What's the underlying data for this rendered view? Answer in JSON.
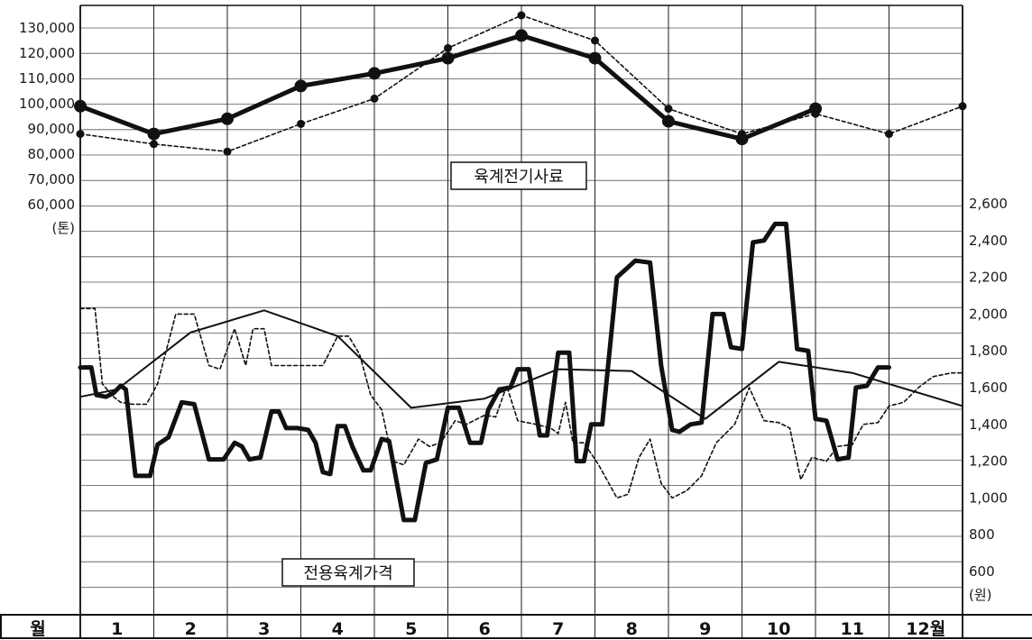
{
  "chart_data": [
    {
      "type": "line",
      "title": "육계전기사료",
      "ylabel": "(톤)",
      "ylim": [
        60000,
        130000
      ],
      "yticks": [
        "130,000",
        "120,000",
        "110,000",
        "100,000",
        "90,000",
        "80,000",
        "70,000",
        "60,000"
      ],
      "x_label": "월",
      "categories": [
        "1",
        "2",
        "3",
        "4",
        "5",
        "6",
        "7",
        "8",
        "9",
        "10",
        "11",
        "12월"
      ],
      "series": [
        {
          "style": "thick-solid",
          "x": [
            0,
            1,
            2,
            3,
            4,
            5,
            6,
            7,
            8,
            9,
            10
          ],
          "values": [
            99000,
            88000,
            94000,
            107000,
            112000,
            118000,
            127000,
            118000,
            93000,
            86000,
            98000
          ]
        },
        {
          "style": "dashed",
          "x": [
            0,
            1,
            2,
            3,
            4,
            5,
            6,
            7,
            8,
            9,
            10,
            11,
            12
          ],
          "values": [
            88000,
            84000,
            81000,
            92000,
            102000,
            122000,
            135000,
            125000,
            98000,
            88000,
            96000,
            88000,
            99000
          ]
        }
      ]
    },
    {
      "type": "line",
      "title": "전용육계가격",
      "ylabel": "(원)",
      "ylim": [
        600,
        2600
      ],
      "yticks": [
        "2,600",
        "2,400",
        "2,200",
        "2,000",
        "1,800",
        "1,600",
        "1,400",
        "1,200",
        "1,000",
        "800",
        "600"
      ],
      "x_label": "월",
      "categories": [
        "1",
        "2",
        "3",
        "4",
        "5",
        "6",
        "7",
        "8",
        "9",
        "10",
        "11",
        "12월"
      ],
      "series": [
        {
          "style": "thin-solid",
          "x": [
            0,
            0.5,
            1.5,
            2.5,
            3.5,
            4.5,
            5.5,
            6.5,
            7.5,
            8.5,
            9.5,
            10.5,
            11.5,
            12
          ],
          "values": [
            1550,
            1590,
            1900,
            2020,
            1880,
            1490,
            1540,
            1700,
            1690,
            1430,
            1740,
            1680,
            1560,
            1500
          ]
        },
        {
          "style": "dashed",
          "x": [
            0,
            0.2,
            0.3,
            0.45,
            0.55,
            0.7,
            0.9,
            1.05,
            1.3,
            1.55,
            1.75,
            1.9,
            2.1,
            2.25,
            2.35,
            2.5,
            2.6,
            2.75,
            2.85,
            3.0,
            3.15,
            3.3,
            3.5,
            3.65,
            3.8,
            3.95,
            4.1,
            4.25,
            4.4,
            4.6,
            4.75,
            4.9,
            5.1,
            5.25,
            5.5,
            5.65,
            5.8,
            5.95,
            6.2,
            6.4,
            6.5,
            6.6,
            6.7,
            6.85,
            7.05,
            7.3,
            7.45,
            7.6,
            7.75,
            7.9,
            8.05,
            8.25,
            8.45,
            8.65,
            8.9,
            9.1,
            9.3,
            9.5,
            9.65,
            9.8,
            9.95,
            10.15,
            10.3,
            10.5,
            10.65,
            10.85,
            11.0,
            11.2,
            11.4,
            11.6,
            11.85,
            12.0
          ],
          "values": [
            2030,
            2030,
            1620,
            1550,
            1520,
            1510,
            1510,
            1620,
            2000,
            2000,
            1720,
            1700,
            1920,
            1720,
            1920,
            1920,
            1720,
            1720,
            1720,
            1720,
            1720,
            1720,
            1880,
            1880,
            1780,
            1560,
            1480,
            1200,
            1180,
            1320,
            1280,
            1300,
            1420,
            1400,
            1450,
            1440,
            1610,
            1420,
            1400,
            1380,
            1350,
            1520,
            1300,
            1300,
            1180,
            1000,
            1020,
            1220,
            1320,
            1080,
            1000,
            1040,
            1120,
            1300,
            1400,
            1600,
            1420,
            1410,
            1380,
            1100,
            1220,
            1200,
            1280,
            1290,
            1400,
            1410,
            1500,
            1520,
            1600,
            1660,
            1680,
            1680
          ]
        },
        {
          "style": "thick-solid",
          "x": [
            0,
            0.15,
            0.22,
            0.35,
            0.45,
            0.55,
            0.62,
            0.75,
            0.95,
            1.05,
            1.2,
            1.38,
            1.55,
            1.75,
            1.95,
            2.1,
            2.2,
            2.3,
            2.45,
            2.6,
            2.7,
            2.8,
            2.95,
            3.1,
            3.2,
            3.3,
            3.4,
            3.5,
            3.6,
            3.7,
            3.85,
            3.95,
            4.1,
            4.2,
            4.4,
            4.55,
            4.7,
            4.85,
            5.0,
            5.15,
            5.3,
            5.45,
            5.55,
            5.7,
            5.85,
            5.95,
            6.1,
            6.25,
            6.35,
            6.5,
            6.65,
            6.75,
            6.85,
            6.95,
            7.1,
            7.3,
            7.55,
            7.75,
            7.9,
            8.05,
            8.15,
            8.3,
            8.45,
            8.6,
            8.75,
            8.85,
            9.0,
            9.15,
            9.3,
            9.45,
            9.6,
            9.75,
            9.9,
            10.0,
            10.15,
            10.3,
            10.45,
            10.55,
            10.7,
            10.85,
            11.0
          ],
          "values": [
            1710,
            1710,
            1560,
            1550,
            1570,
            1610,
            1590,
            1120,
            1120,
            1290,
            1330,
            1520,
            1510,
            1210,
            1210,
            1300,
            1280,
            1210,
            1220,
            1470,
            1470,
            1380,
            1380,
            1370,
            1300,
            1140,
            1130,
            1390,
            1390,
            1280,
            1150,
            1150,
            1320,
            1310,
            880,
            880,
            1190,
            1210,
            1490,
            1490,
            1300,
            1300,
            1480,
            1590,
            1600,
            1700,
            1700,
            1340,
            1340,
            1790,
            1790,
            1200,
            1200,
            1400,
            1400,
            2200,
            2290,
            2280,
            1720,
            1370,
            1360,
            1400,
            1410,
            2000,
            2000,
            1820,
            1810,
            2390,
            2400,
            2490,
            2490,
            1810,
            1800,
            1430,
            1420,
            1210,
            1220,
            1600,
            1610,
            1710,
            1710
          ]
        }
      ]
    }
  ]
}
